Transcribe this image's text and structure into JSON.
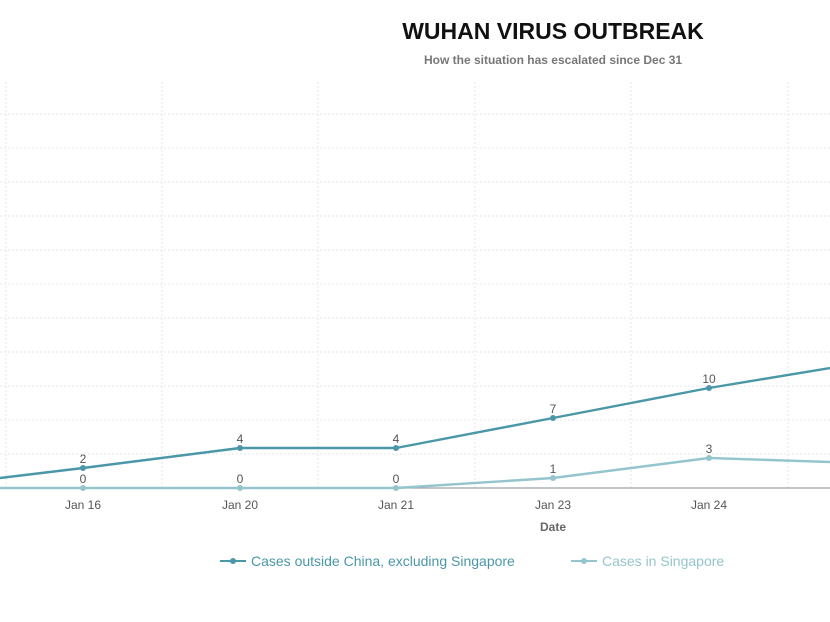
{
  "chart_data": {
    "type": "line",
    "title": "WUHAN VIRUS OUTBREAK",
    "subtitle": "How the situation has escalated since Dec 31",
    "xlabel": "Date",
    "ylabel": "",
    "categories": [
      "Jan 16",
      "Jan 20",
      "Jan 21",
      "Jan 23",
      "Jan 24"
    ],
    "series": [
      {
        "name": "Cases outside China, excluding Singapore",
        "values": [
          2,
          4,
          4,
          7,
          10
        ],
        "color": "#4a97a8"
      },
      {
        "name": "Cases in Singapore",
        "values": [
          0,
          0,
          0,
          1,
          3
        ],
        "color": "#95c5cc"
      }
    ],
    "grid": true,
    "legend_position": "bottom"
  }
}
